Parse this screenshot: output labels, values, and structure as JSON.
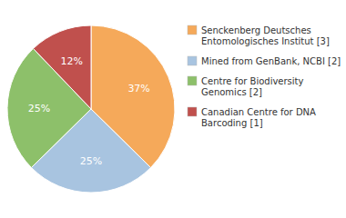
{
  "chart_data": {
    "type": "pie",
    "categories": [
      "Senckenberg Deutsches\nEntomologisches Institut [3]",
      "Mined from GenBank, NCBI [2]",
      "Centre for Biodiversity\nGenomics [2]",
      "Canadian Centre for DNA\nBarcoding [1]"
    ],
    "values": [
      37,
      25,
      25,
      12
    ],
    "value_labels": [
      "37%",
      "25%",
      "25%",
      "12%"
    ],
    "colors": [
      "#F5A95A",
      "#A8C4E0",
      "#8DC06A",
      "#C0504D"
    ],
    "data_labels": true,
    "legend": "right"
  }
}
